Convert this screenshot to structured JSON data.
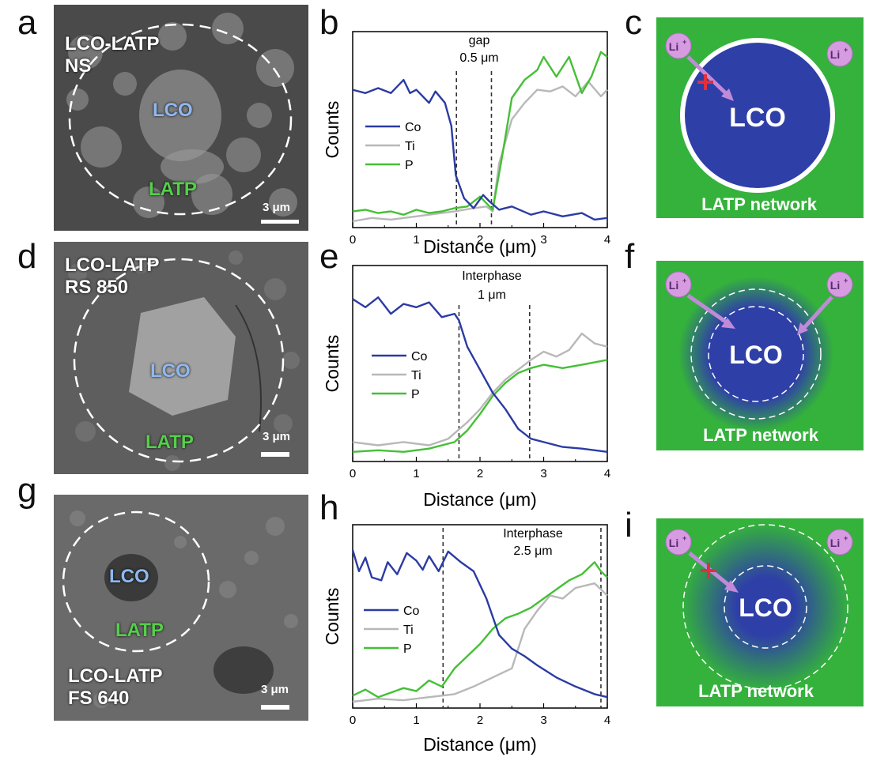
{
  "panel_labels": {
    "a": "a",
    "b": "b",
    "c": "c",
    "d": "d",
    "e": "e",
    "f": "f",
    "g": "g",
    "h": "h",
    "i": "i"
  },
  "sem": [
    {
      "id": "a",
      "sample": "LCO-LATP\nNS",
      "lco": "LCO",
      "latp": "LATP",
      "scale": "3 μm"
    },
    {
      "id": "d",
      "sample": "LCO-LATP\nRS 850",
      "lco": "LCO",
      "latp": "LATP",
      "scale": "3 μm"
    },
    {
      "id": "g",
      "sample": "LCO-LATP\nFS 640",
      "lco": "LCO",
      "latp": "LATP",
      "scale": "3 μm"
    }
  ],
  "colors": {
    "co": "#2b3ba3",
    "ti": "#b8b8b8",
    "p": "#44c035",
    "green_bg": "#34b23c",
    "lco_blue": "#2f3fa8",
    "li_purple": "#d69be0",
    "arrow": "#c08ad8",
    "cross": "#e0303a",
    "lco_text_sem": "#8fb8f0",
    "latp_text_sem": "#55d04a"
  },
  "chart_data": [
    {
      "type": "line",
      "panel": "b",
      "xlabel": "Distance (μm)",
      "ylabel": "Counts",
      "xlim": [
        0,
        4
      ],
      "xticks": [
        "0",
        "1",
        "2",
        "3",
        "4"
      ],
      "annotation": {
        "line1": "gap",
        "line2": "0.5 μm"
      },
      "dashed_x": [
        1.63,
        2.18
      ],
      "series": [
        {
          "name": "Co",
          "values": [
            [
              0,
              0.8
            ],
            [
              0.2,
              0.78
            ],
            [
              0.4,
              0.81
            ],
            [
              0.6,
              0.78
            ],
            [
              0.8,
              0.86
            ],
            [
              0.9,
              0.78
            ],
            [
              1.0,
              0.8
            ],
            [
              1.2,
              0.72
            ],
            [
              1.3,
              0.79
            ],
            [
              1.45,
              0.72
            ],
            [
              1.55,
              0.58
            ],
            [
              1.62,
              0.28
            ],
            [
              1.75,
              0.14
            ],
            [
              1.9,
              0.08
            ],
            [
              2.05,
              0.16
            ],
            [
              2.15,
              0.12
            ],
            [
              2.3,
              0.07
            ],
            [
              2.5,
              0.09
            ],
            [
              2.8,
              0.04
            ],
            [
              3.0,
              0.06
            ],
            [
              3.3,
              0.03
            ],
            [
              3.6,
              0.05
            ],
            [
              3.8,
              0.01
            ],
            [
              4.0,
              0.02
            ]
          ]
        },
        {
          "name": "Ti",
          "values": [
            [
              0,
              0.0
            ],
            [
              0.3,
              0.02
            ],
            [
              0.6,
              0.01
            ],
            [
              1.0,
              0.03
            ],
            [
              1.4,
              0.05
            ],
            [
              1.6,
              0.06
            ],
            [
              1.9,
              0.08
            ],
            [
              2.1,
              0.09
            ],
            [
              2.2,
              0.06
            ],
            [
              2.3,
              0.35
            ],
            [
              2.5,
              0.62
            ],
            [
              2.7,
              0.72
            ],
            [
              2.9,
              0.8
            ],
            [
              3.1,
              0.79
            ],
            [
              3.3,
              0.82
            ],
            [
              3.5,
              0.76
            ],
            [
              3.7,
              0.85
            ],
            [
              3.9,
              0.76
            ],
            [
              4.0,
              0.8
            ]
          ]
        },
        {
          "name": "P",
          "values": [
            [
              0,
              0.06
            ],
            [
              0.2,
              0.07
            ],
            [
              0.4,
              0.05
            ],
            [
              0.6,
              0.06
            ],
            [
              0.8,
              0.04
            ],
            [
              1.0,
              0.07
            ],
            [
              1.2,
              0.05
            ],
            [
              1.4,
              0.06
            ],
            [
              1.6,
              0.08
            ],
            [
              1.8,
              0.09
            ],
            [
              2.0,
              0.15
            ],
            [
              2.2,
              0.07
            ],
            [
              2.35,
              0.4
            ],
            [
              2.5,
              0.75
            ],
            [
              2.7,
              0.86
            ],
            [
              2.9,
              0.92
            ],
            [
              3.0,
              1.0
            ],
            [
              3.2,
              0.88
            ],
            [
              3.4,
              1.0
            ],
            [
              3.6,
              0.78
            ],
            [
              3.75,
              0.88
            ],
            [
              3.9,
              1.03
            ],
            [
              4.0,
              1.0
            ]
          ]
        }
      ]
    },
    {
      "type": "line",
      "panel": "e",
      "xlabel": "Distance (μm)",
      "ylabel": "Counts",
      "xlim": [
        0,
        4
      ],
      "xticks": [
        "0",
        "1",
        "2",
        "3",
        "4"
      ],
      "annotation": {
        "line1": "Interphase",
        "line2": "1 μm"
      },
      "dashed_x": [
        1.67,
        2.78
      ],
      "series": [
        {
          "name": "Co",
          "values": [
            [
              0,
              0.95
            ],
            [
              0.2,
              0.9
            ],
            [
              0.4,
              0.96
            ],
            [
              0.6,
              0.86
            ],
            [
              0.8,
              0.92
            ],
            [
              1.0,
              0.9
            ],
            [
              1.2,
              0.93
            ],
            [
              1.4,
              0.84
            ],
            [
              1.6,
              0.86
            ],
            [
              1.67,
              0.82
            ],
            [
              1.8,
              0.66
            ],
            [
              2.0,
              0.52
            ],
            [
              2.2,
              0.38
            ],
            [
              2.4,
              0.28
            ],
            [
              2.6,
              0.16
            ],
            [
              2.8,
              0.1
            ],
            [
              3.0,
              0.08
            ],
            [
              3.3,
              0.05
            ],
            [
              3.6,
              0.04
            ],
            [
              4.0,
              0.02
            ]
          ]
        },
        {
          "name": "Ti",
          "values": [
            [
              0,
              0.08
            ],
            [
              0.4,
              0.06
            ],
            [
              0.8,
              0.08
            ],
            [
              1.2,
              0.06
            ],
            [
              1.5,
              0.1
            ],
            [
              1.8,
              0.2
            ],
            [
              2.0,
              0.28
            ],
            [
              2.2,
              0.38
            ],
            [
              2.4,
              0.46
            ],
            [
              2.6,
              0.52
            ],
            [
              2.8,
              0.58
            ],
            [
              3.0,
              0.63
            ],
            [
              3.2,
              0.6
            ],
            [
              3.4,
              0.64
            ],
            [
              3.6,
              0.74
            ],
            [
              3.8,
              0.68
            ],
            [
              4.0,
              0.66
            ]
          ]
        },
        {
          "name": "P",
          "values": [
            [
              0,
              0.02
            ],
            [
              0.4,
              0.03
            ],
            [
              0.8,
              0.02
            ],
            [
              1.2,
              0.04
            ],
            [
              1.6,
              0.08
            ],
            [
              1.8,
              0.15
            ],
            [
              2.0,
              0.25
            ],
            [
              2.2,
              0.36
            ],
            [
              2.4,
              0.44
            ],
            [
              2.6,
              0.5
            ],
            [
              2.8,
              0.53
            ],
            [
              3.0,
              0.55
            ],
            [
              3.3,
              0.53
            ],
            [
              3.6,
              0.55
            ],
            [
              4.0,
              0.58
            ]
          ]
        }
      ]
    },
    {
      "type": "line",
      "panel": "h",
      "xlabel": "Distance (μm)",
      "ylabel": "Counts",
      "xlim": [
        0,
        4
      ],
      "xticks": [
        "0",
        "1",
        "2",
        "3",
        "4"
      ],
      "annotation": {
        "line1": "Interphase",
        "line2": "2.5 μm"
      },
      "dashed_x": [
        1.42,
        3.9
      ],
      "series": [
        {
          "name": "Co",
          "values": [
            [
              0,
              1.0
            ],
            [
              0.1,
              0.86
            ],
            [
              0.2,
              0.95
            ],
            [
              0.3,
              0.82
            ],
            [
              0.45,
              0.8
            ],
            [
              0.55,
              0.92
            ],
            [
              0.7,
              0.84
            ],
            [
              0.85,
              0.98
            ],
            [
              1.0,
              0.93
            ],
            [
              1.1,
              0.87
            ],
            [
              1.2,
              0.96
            ],
            [
              1.35,
              0.86
            ],
            [
              1.5,
              0.99
            ],
            [
              1.7,
              0.92
            ],
            [
              1.9,
              0.86
            ],
            [
              2.1,
              0.68
            ],
            [
              2.3,
              0.44
            ],
            [
              2.5,
              0.35
            ],
            [
              2.7,
              0.3
            ],
            [
              2.9,
              0.24
            ],
            [
              3.2,
              0.16
            ],
            [
              3.5,
              0.1
            ],
            [
              3.8,
              0.05
            ],
            [
              4.0,
              0.03
            ]
          ]
        },
        {
          "name": "Ti",
          "values": [
            [
              0,
              0.0
            ],
            [
              0.4,
              0.02
            ],
            [
              0.8,
              0.01
            ],
            [
              1.2,
              0.03
            ],
            [
              1.6,
              0.05
            ],
            [
              1.9,
              0.1
            ],
            [
              2.1,
              0.14
            ],
            [
              2.3,
              0.18
            ],
            [
              2.5,
              0.22
            ],
            [
              2.7,
              0.48
            ],
            [
              2.9,
              0.6
            ],
            [
              3.1,
              0.7
            ],
            [
              3.3,
              0.68
            ],
            [
              3.5,
              0.75
            ],
            [
              3.8,
              0.78
            ],
            [
              4.0,
              0.7
            ]
          ]
        },
        {
          "name": "P",
          "values": [
            [
              0,
              0.04
            ],
            [
              0.2,
              0.08
            ],
            [
              0.4,
              0.03
            ],
            [
              0.6,
              0.06
            ],
            [
              0.8,
              0.09
            ],
            [
              1.0,
              0.07
            ],
            [
              1.2,
              0.14
            ],
            [
              1.4,
              0.1
            ],
            [
              1.6,
              0.22
            ],
            [
              1.8,
              0.3
            ],
            [
              2.0,
              0.38
            ],
            [
              2.2,
              0.48
            ],
            [
              2.4,
              0.55
            ],
            [
              2.6,
              0.58
            ],
            [
              2.8,
              0.62
            ],
            [
              3.0,
              0.68
            ],
            [
              3.2,
              0.74
            ],
            [
              3.4,
              0.8
            ],
            [
              3.6,
              0.84
            ],
            [
              3.8,
              0.92
            ],
            [
              3.9,
              0.86
            ],
            [
              4.0,
              0.82
            ]
          ]
        }
      ]
    }
  ],
  "schematics": [
    {
      "id": "c",
      "lco": "LCO",
      "network": "LATP network",
      "li": "Li",
      "li_sup": "+"
    },
    {
      "id": "f",
      "lco": "LCO",
      "network": "LATP network",
      "li": "Li",
      "li_sup": "+"
    },
    {
      "id": "i",
      "lco": "LCO",
      "network": "LATP network",
      "li": "Li",
      "li_sup": "+"
    }
  ]
}
